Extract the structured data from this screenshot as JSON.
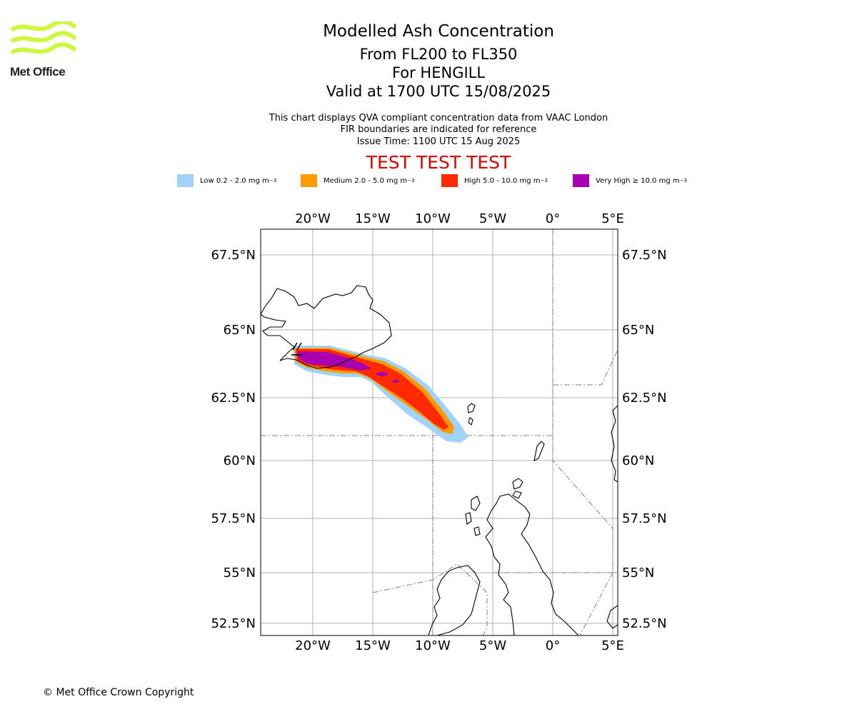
{
  "header": {
    "logo_text": "Met Office",
    "title": "Modelled Ash Concentration",
    "flight_levels": "From FL200 to FL350",
    "volcano": "For HENGILL",
    "valid_time": "Valid at 1700 UTC 15/08/2025",
    "note_1": "This chart displays QVA compliant concentration data from VAAC London",
    "note_2": "FIR boundaries are indicated for reference",
    "issue_time": "Issue Time: 1100 UTC 15 Aug 2025",
    "test_banner": "TEST TEST TEST"
  },
  "legend": [
    {
      "label": "Low 0.2 - 2.0 mg m",
      "sup": "−3",
      "color": "#9fd3fb"
    },
    {
      "label": "Medium 2.0 - 5.0 mg m",
      "sup": "−3",
      "color": "#ff9a00"
    },
    {
      "label": "High 5.0 - 10.0 mg m",
      "sup": "−3",
      "color": "#ff2a00"
    },
    {
      "label": "Very High  ≥  10.0 mg m",
      "sup": "−3",
      "color": "#a800b0"
    }
  ],
  "map": {
    "longitude_labels": [
      "20°W",
      "15°W",
      "10°W",
      "5°W",
      "0°",
      "5°E"
    ],
    "latitude_labels": [
      "67.5°N",
      "65°N",
      "62.5°N",
      "60°N",
      "57.5°N",
      "55°N",
      "52.5°N"
    ],
    "colors": {
      "grid": "#b0b0b0",
      "coast": "#000000",
      "fir": "#808080",
      "logo": "#cdf83c"
    }
  },
  "footer": {
    "copyright": "© Met Office Crown Copyright"
  }
}
